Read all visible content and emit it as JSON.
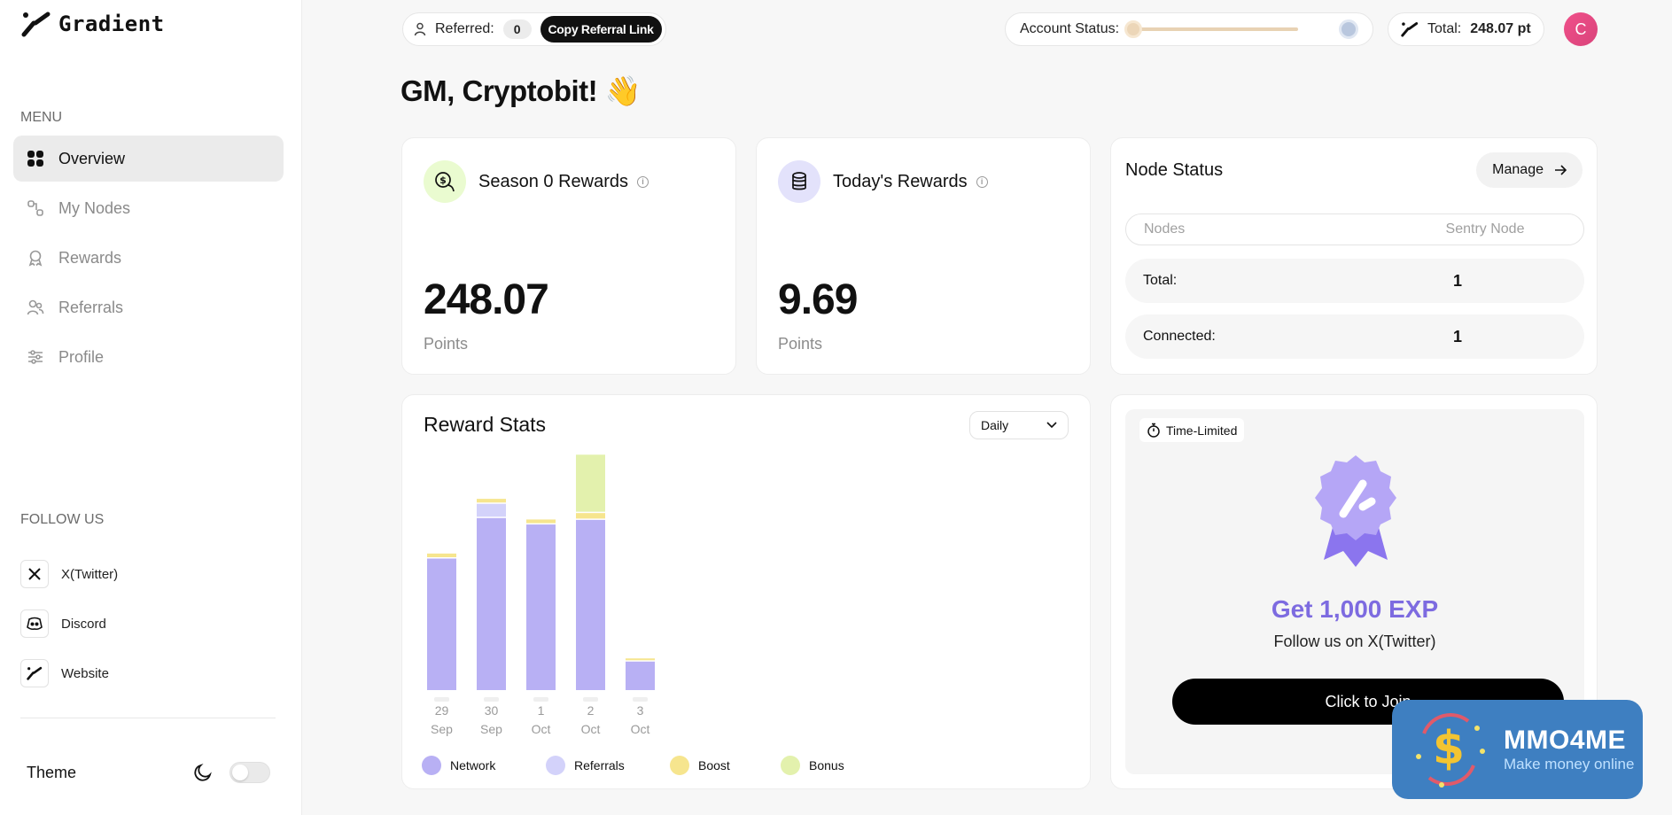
{
  "brand": {
    "name": "Gradient"
  },
  "sidebar": {
    "menu_label": "MENU",
    "items": [
      {
        "label": "Overview",
        "icon": "grid-icon",
        "active": true
      },
      {
        "label": "My Nodes",
        "icon": "nodes-icon",
        "active": false
      },
      {
        "label": "Rewards",
        "icon": "award-icon",
        "active": false
      },
      {
        "label": "Referrals",
        "icon": "users-icon",
        "active": false
      },
      {
        "label": "Profile",
        "icon": "sliders-icon",
        "active": false
      }
    ],
    "follow_label": "FOLLOW US",
    "socials": [
      {
        "label": "X(Twitter)",
        "icon": "x-icon"
      },
      {
        "label": "Discord",
        "icon": "discord-icon"
      },
      {
        "label": "Website",
        "icon": "gradient-logo-icon"
      }
    ],
    "theme_label": "Theme"
  },
  "topbar": {
    "referred_label": "Referred:",
    "referred_count": "0",
    "copy_label": "Copy Referral Link",
    "account_status_label": "Account Status:",
    "total_label": "Total:",
    "total_value": "248.07 pt",
    "avatar_initial": "C"
  },
  "greeting": "GM, Cryptobit! 👋",
  "season": {
    "title": "Season 0 Rewards",
    "value": "248.07",
    "unit": "Points"
  },
  "today": {
    "title": "Today's Rewards",
    "value": "9.69",
    "unit": "Points"
  },
  "node_status": {
    "title": "Node Status",
    "manage_label": "Manage",
    "col_nodes": "Nodes",
    "col_type": "Sentry Node",
    "rows": [
      {
        "label": "Total:",
        "value": "1"
      },
      {
        "label": "Connected:",
        "value": "1"
      }
    ]
  },
  "reward_stats": {
    "title": "Reward Stats",
    "period": "Daily",
    "legend": [
      {
        "label": "Network",
        "color": "#b8b0f4"
      },
      {
        "label": "Referrals",
        "color": "#d3d2fa"
      },
      {
        "label": "Boost",
        "color": "#f6e58e"
      },
      {
        "label": "Bonus",
        "color": "#e3f1ad"
      }
    ]
  },
  "chart_data": {
    "type": "bar",
    "stacked": true,
    "categories": [
      "29 Sep",
      "30 Sep",
      "1 Oct",
      "2 Oct",
      "3 Oct"
    ],
    "day_labels": [
      "29",
      "30",
      "1",
      "2",
      "3"
    ],
    "month_labels": [
      "Sep",
      "Sep",
      "Oct",
      "Oct",
      "Oct"
    ],
    "series": [
      {
        "name": "Network",
        "values": [
          143,
          187,
          180,
          185,
          31
        ]
      },
      {
        "name": "Referrals",
        "values": [
          0,
          14,
          0,
          0,
          0
        ]
      },
      {
        "name": "Boost",
        "values": [
          4,
          4,
          4,
          6,
          2
        ]
      },
      {
        "name": "Bonus",
        "values": [
          0,
          0,
          0,
          62,
          0
        ]
      }
    ],
    "ylim": [
      0,
      260
    ]
  },
  "promo": {
    "tag": "Time-Limited",
    "title": "Get 1,000 EXP",
    "subtitle": "Follow us on X(Twitter)",
    "button": "Click to Join"
  },
  "watermark": {
    "main": "MMO4ME",
    "sub": "Make money online"
  }
}
